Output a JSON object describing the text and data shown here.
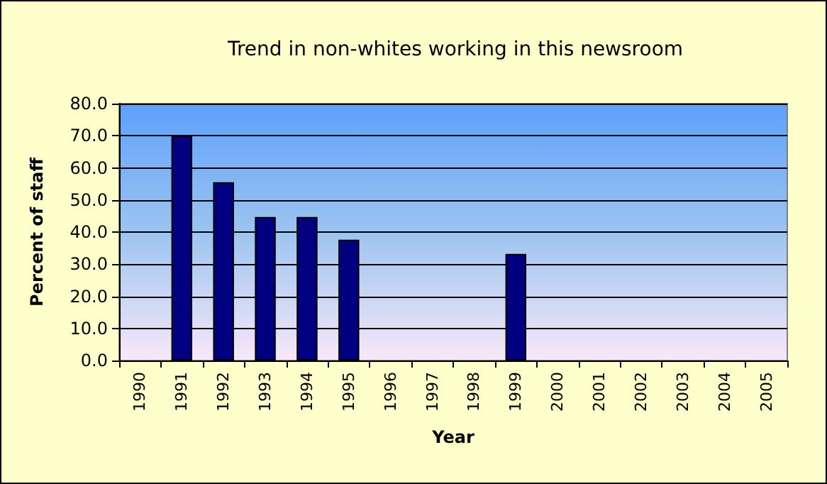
{
  "chart_data": {
    "type": "bar",
    "title": "Trend in non-whites working in this newsroom",
    "xlabel": "Year",
    "ylabel": "Percent of staff",
    "categories": [
      "1990",
      "1991",
      "1992",
      "1993",
      "1994",
      "1995",
      "1996",
      "1997",
      "1998",
      "1999",
      "2000",
      "2001",
      "2002",
      "2003",
      "2004",
      "2005"
    ],
    "values": [
      null,
      70,
      55.5,
      44.7,
      44.7,
      37.6,
      null,
      null,
      null,
      33.2,
      null,
      null,
      null,
      null,
      null,
      null
    ],
    "color": "#000080",
    "ylim": [
      0,
      80
    ],
    "yticks": [
      {
        "value": 0,
        "label": "0.0"
      },
      {
        "value": 10,
        "label": "10.0"
      },
      {
        "value": 20,
        "label": "20.0"
      },
      {
        "value": 30,
        "label": "30.0"
      },
      {
        "value": 40,
        "label": "40.0"
      },
      {
        "value": 50,
        "label": "50.0"
      },
      {
        "value": 60,
        "label": "60.0"
      },
      {
        "value": 70,
        "label": "70.0"
      },
      {
        "value": 80,
        "label": "80.0"
      }
    ],
    "grid": "y"
  }
}
